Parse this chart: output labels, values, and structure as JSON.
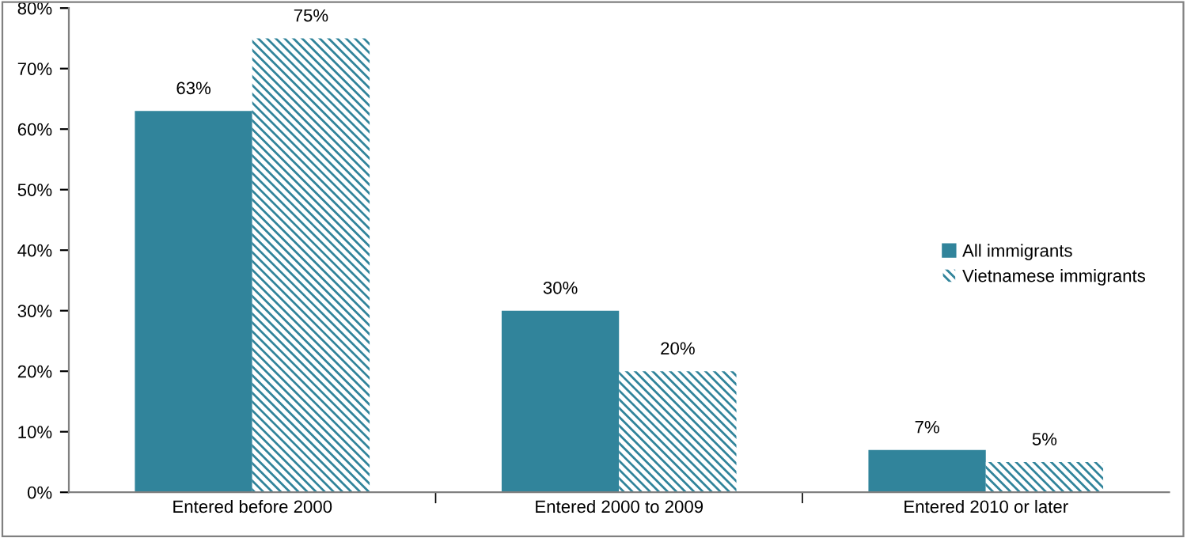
{
  "chart_data": {
    "type": "bar",
    "categories": [
      "Entered before 2000",
      "Entered 2000 to 2009",
      "Entered 2010 or later"
    ],
    "series": [
      {
        "name": "All immigrants",
        "color": "#31849b",
        "values": [
          63,
          30,
          7
        ],
        "value_labels": [
          "63%",
          "30%",
          "7%"
        ]
      },
      {
        "name": "Vietnamese immigrants",
        "color": "#31849b",
        "values": [
          75,
          20,
          5
        ],
        "value_labels": [
          "75%",
          "20%",
          "5%"
        ]
      }
    ],
    "ylim": [
      0,
      80
    ],
    "yticks": [
      {
        "value": 0,
        "label": "0%"
      },
      {
        "value": 10,
        "label": "10%"
      },
      {
        "value": 20,
        "label": "20%"
      },
      {
        "value": 30,
        "label": "30%"
      },
      {
        "value": 40,
        "label": "40%"
      },
      {
        "value": 50,
        "label": "50%"
      },
      {
        "value": 60,
        "label": "60%"
      },
      {
        "value": 70,
        "label": "70%"
      },
      {
        "value": 80,
        "label": "80%"
      }
    ],
    "grid": false,
    "legend": "right"
  }
}
